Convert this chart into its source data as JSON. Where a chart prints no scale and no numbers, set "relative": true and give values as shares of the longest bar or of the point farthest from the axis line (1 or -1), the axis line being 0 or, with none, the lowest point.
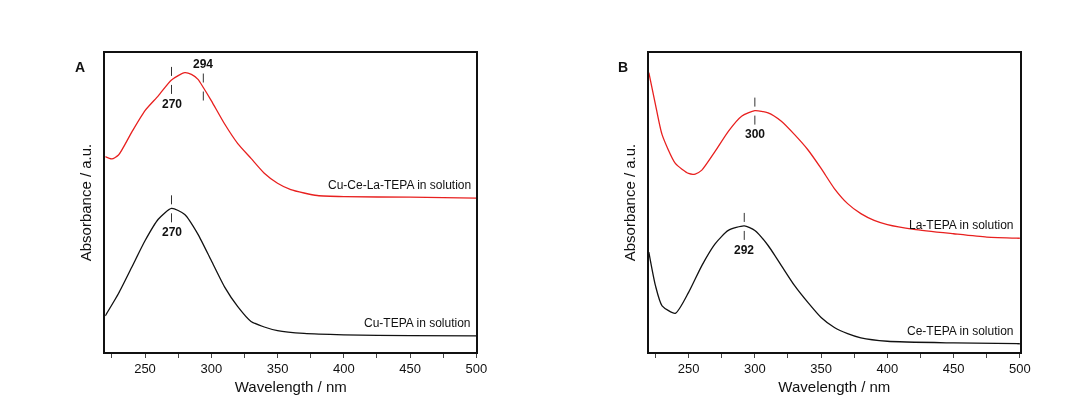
{
  "chart_data": [
    {
      "type": "line",
      "title": "A",
      "xlabel": "Wavelength / nm",
      "ylabel": "Absorbance / a.u.",
      "relative": true,
      "tick_labels": "x",
      "xlim": [
        220,
        500
      ],
      "xticks": [
        {
          "value": 225,
          "label": null
        },
        250,
        {
          "value": 275,
          "label": null
        },
        300,
        {
          "value": 325,
          "label": null
        },
        350,
        {
          "value": 375,
          "label": null
        },
        400,
        {
          "value": 425,
          "label": null
        },
        450,
        {
          "value": 475,
          "label": null
        },
        500
      ],
      "series": [
        {
          "name": "Cu-Ce-La-TEPA in solution",
          "color": "#e8201f",
          "x": [
            220,
            225,
            230,
            240,
            250,
            260,
            270,
            280,
            285,
            290,
            294,
            300,
            310,
            320,
            330,
            340,
            350,
            360,
            370,
            380,
            400,
            450,
            500
          ],
          "values": [
            0.699,
            0.691,
            0.705,
            0.787,
            0.864,
            0.917,
            0.974,
            1.0,
            0.994,
            0.976,
            0.947,
            0.9,
            0.817,
            0.746,
            0.693,
            0.64,
            0.604,
            0.581,
            0.569,
            0.56,
            0.556,
            0.554,
            0.551
          ]
        },
        {
          "name": "Cu-TEPA in solution",
          "color": "#111111",
          "x": [
            220,
            230,
            240,
            250,
            260,
            270,
            280,
            290,
            300,
            310,
            320,
            330,
            340,
            350,
            370,
            400,
            450,
            500
          ],
          "values": [
            0.129,
            0.209,
            0.303,
            0.398,
            0.475,
            0.514,
            0.492,
            0.421,
            0.327,
            0.233,
            0.162,
            0.109,
            0.089,
            0.076,
            0.066,
            0.061,
            0.058,
            0.057
          ]
        }
      ],
      "annotations": [
        {
          "text": "270",
          "x": 270,
          "y": 0.974
        },
        {
          "text": "294",
          "x": 294,
          "y": 0.947
        },
        {
          "text": "270",
          "x": 270,
          "y": 0.514
        }
      ]
    },
    {
      "type": "line",
      "title": "B",
      "xlabel": "Wavelength / nm",
      "ylabel": "Absorbance / a.u.",
      "relative": true,
      "tick_labels": "x",
      "xlim": [
        220,
        500
      ],
      "xticks": [
        {
          "value": 225,
          "label": null
        },
        250,
        {
          "value": 275,
          "label": null
        },
        300,
        {
          "value": 325,
          "label": null
        },
        350,
        {
          "value": 375,
          "label": null
        },
        400,
        {
          "value": 425,
          "label": null
        },
        450,
        {
          "value": 475,
          "label": null
        },
        500
      ],
      "series": [
        {
          "name": "La-TEPA in solution",
          "color": "#e8201f",
          "x": [
            220,
            225,
            230,
            240,
            250,
            255,
            260,
            270,
            280,
            290,
            300,
            310,
            320,
            330,
            340,
            350,
            360,
            370,
            380,
            390,
            400,
            420,
            450,
            475,
            500
          ],
          "values": [
            1.0,
            0.886,
            0.778,
            0.675,
            0.639,
            0.637,
            0.651,
            0.718,
            0.79,
            0.844,
            0.864,
            0.856,
            0.826,
            0.778,
            0.724,
            0.657,
            0.585,
            0.531,
            0.495,
            0.471,
            0.456,
            0.439,
            0.423,
            0.411,
            0.407
          ]
        },
        {
          "name": "Ce-TEPA in solution",
          "color": "#111111",
          "x": [
            220,
            225,
            230,
            240,
            250,
            260,
            270,
            280,
            292,
            300,
            310,
            320,
            330,
            340,
            350,
            360,
            370,
            380,
            400,
            450,
            500
          ],
          "values": [
            0.357,
            0.237,
            0.165,
            0.138,
            0.213,
            0.309,
            0.387,
            0.435,
            0.451,
            0.435,
            0.381,
            0.309,
            0.237,
            0.177,
            0.123,
            0.087,
            0.065,
            0.05,
            0.038,
            0.032,
            0.029
          ]
        }
      ],
      "annotations": [
        {
          "text": "300",
          "x": 300,
          "y": 0.864
        },
        {
          "text": "292",
          "x": 292,
          "y": 0.451
        }
      ]
    }
  ]
}
